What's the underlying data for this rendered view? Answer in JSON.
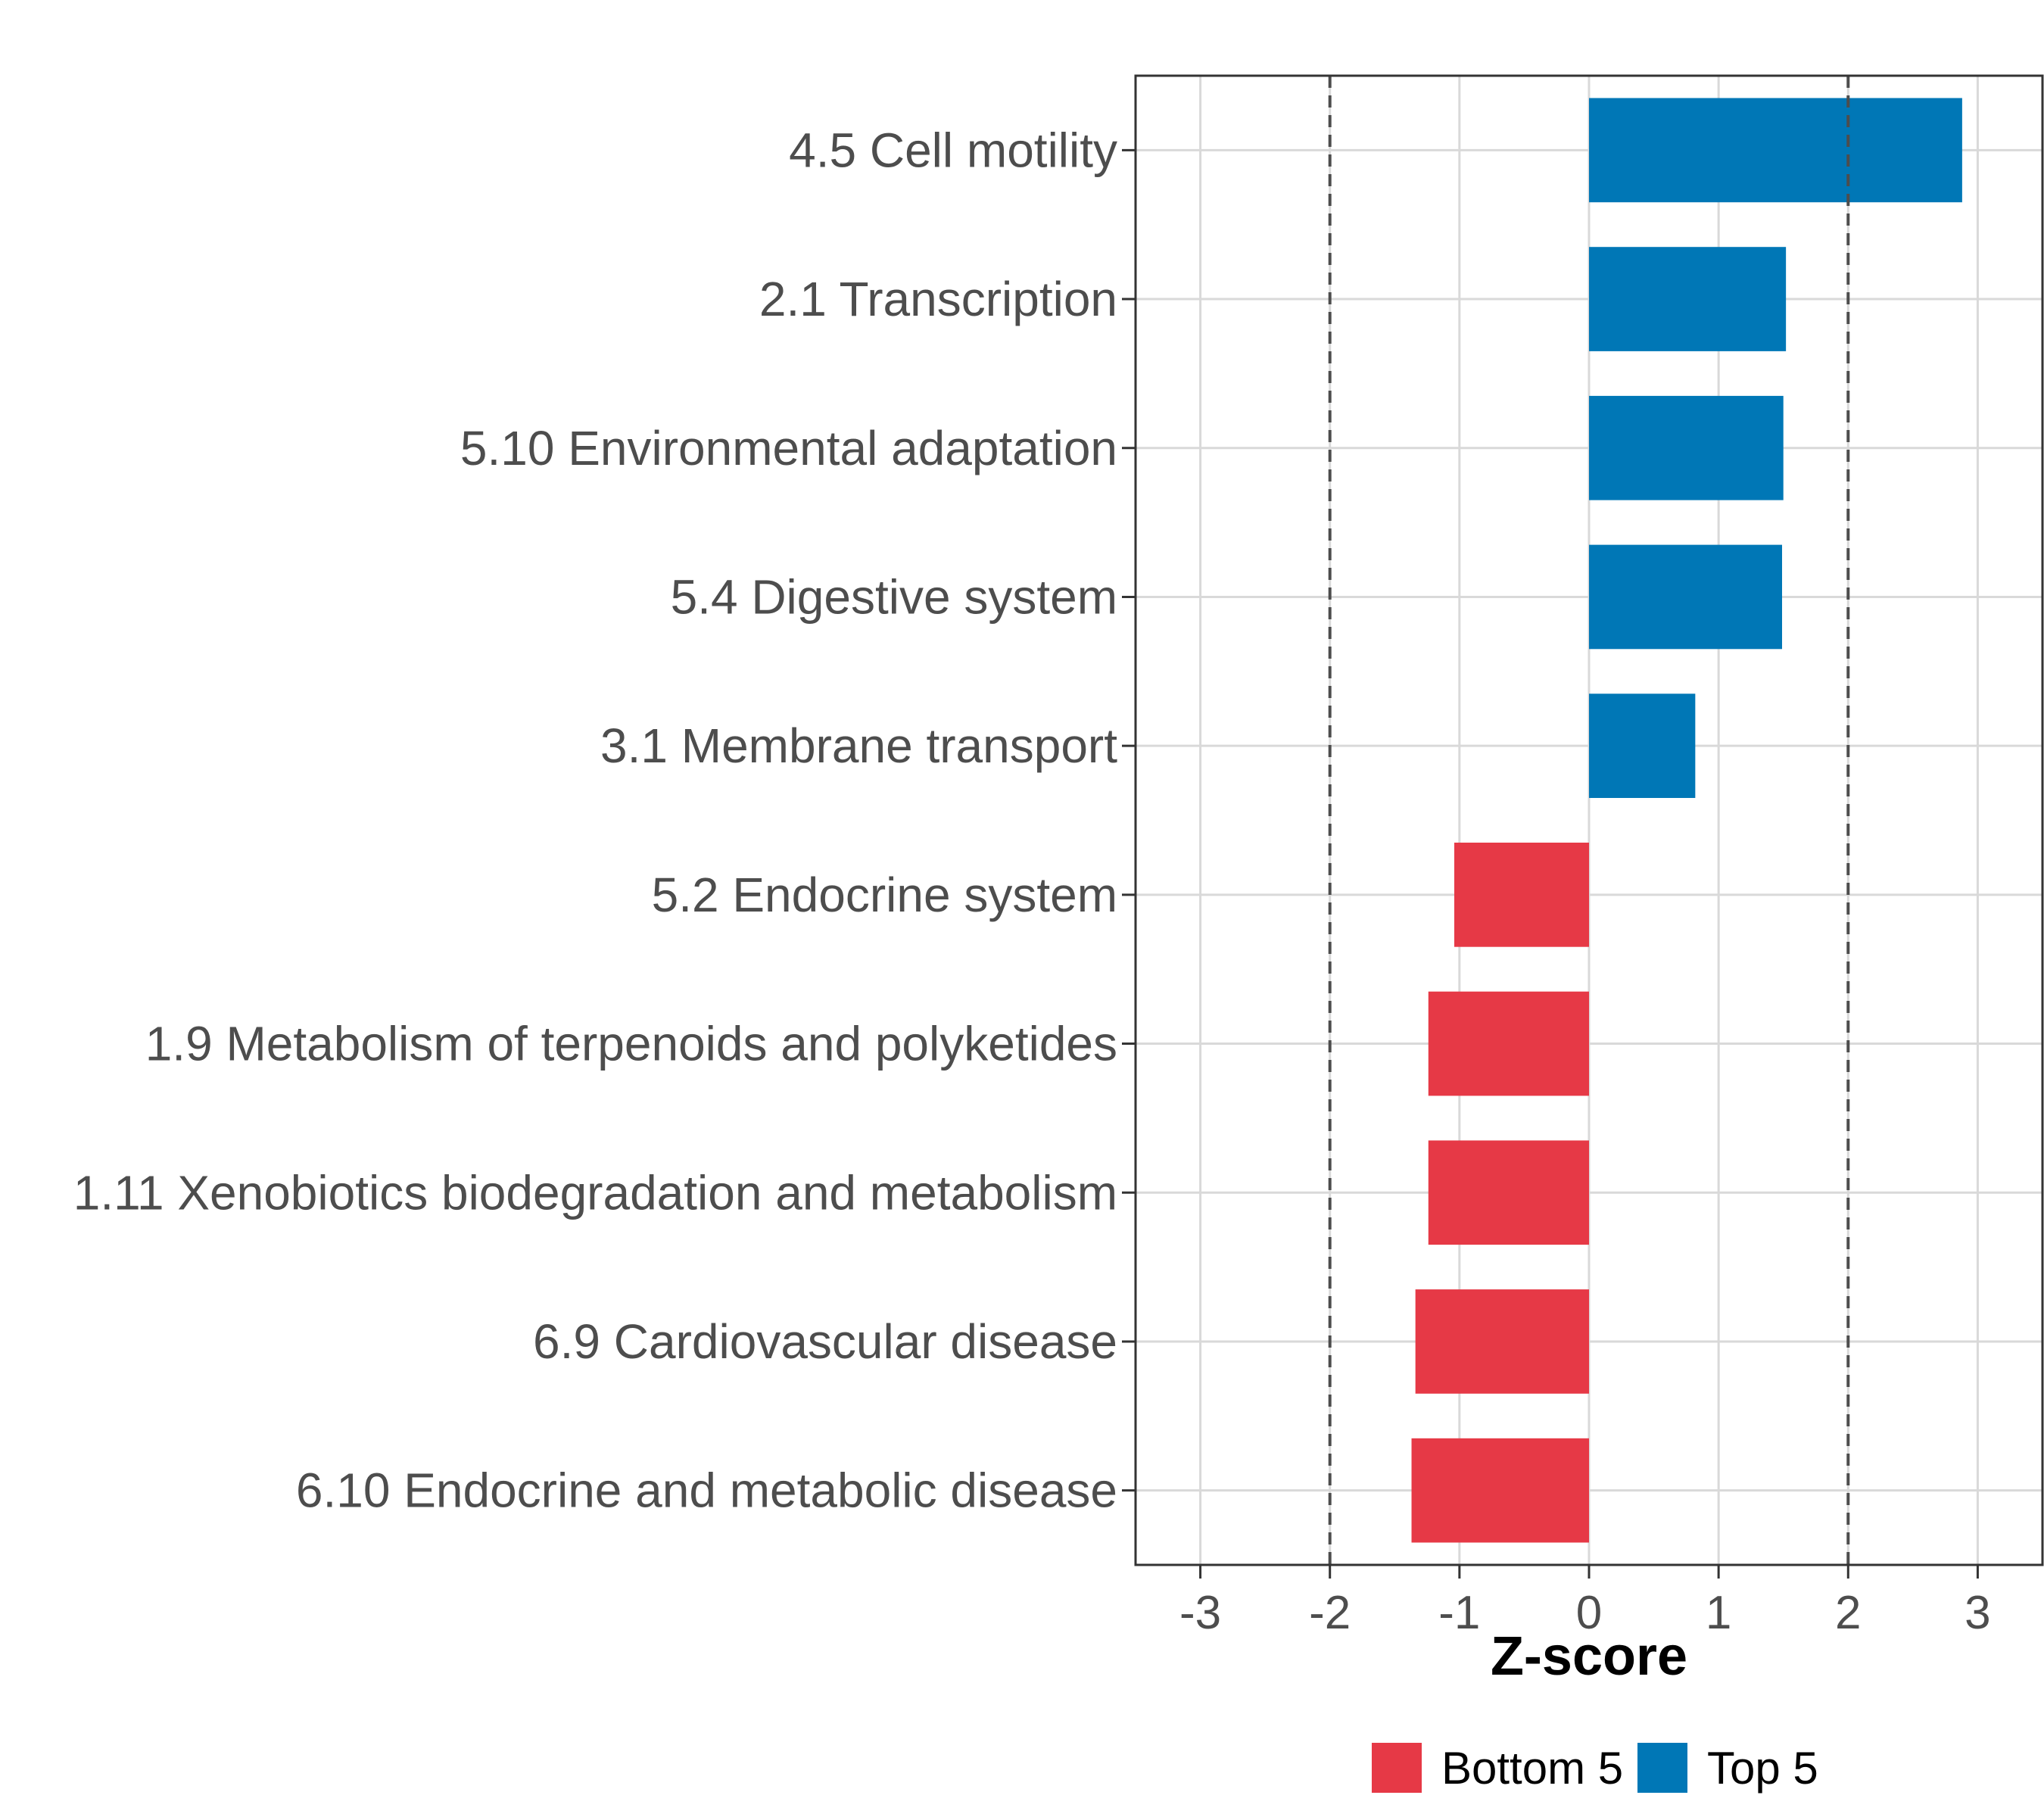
{
  "chart_data": {
    "type": "bar",
    "orientation": "horizontal",
    "categories": [
      "4.5 Cell motility",
      "2.1 Transcription",
      "5.10 Environmental adaptation",
      "5.4 Digestive system",
      "3.1 Membrane transport",
      "5.2 Endocrine system",
      "1.9 Metabolism of terpenoids and polyketides",
      "1.11 Xenobiotics biodegradation and metabolism",
      "6.9 Cardiovascular disease",
      "6.10 Endocrine and metabolic disease"
    ],
    "values": [
      2.88,
      1.52,
      1.5,
      1.49,
      0.82,
      -1.04,
      -1.24,
      -1.24,
      -1.34,
      -1.37
    ],
    "groups": [
      "Top 5",
      "Top 5",
      "Top 5",
      "Top 5",
      "Top 5",
      "Bottom 5",
      "Bottom 5",
      "Bottom 5",
      "Bottom 5",
      "Bottom 5"
    ],
    "xlabel": "Z-score",
    "ylabel": "",
    "xlim": [
      -3.5,
      3.5
    ],
    "xticks": [
      -3,
      -2,
      -1,
      0,
      1,
      2,
      3
    ],
    "tick_labels": [
      "-3",
      "-2",
      "-1",
      "0",
      "1",
      "2",
      "3"
    ],
    "reference_lines": [
      -2,
      2
    ],
    "grid": true,
    "legend": {
      "placement": "bottom",
      "entries": [
        {
          "label": "Bottom 5",
          "color": "#E63946"
        },
        {
          "label": "Top 5",
          "color": "#0077B6"
        }
      ]
    }
  },
  "colors": {
    "top": "#0077B6",
    "bottom": "#E63946",
    "grid": "#d9d9d9",
    "refline": "#4d4d4d"
  }
}
